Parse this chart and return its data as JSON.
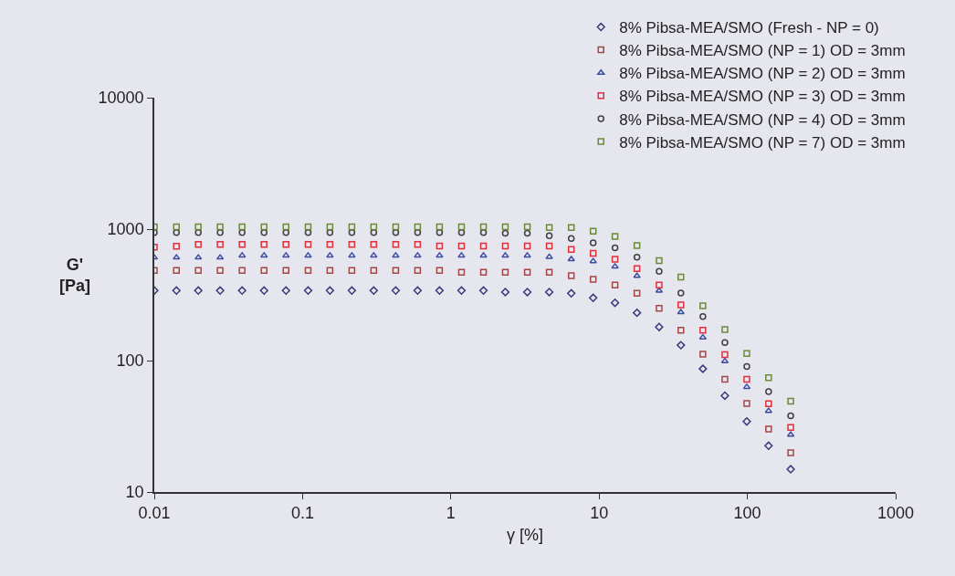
{
  "chart_data": {
    "type": "scatter",
    "xlabel": "γ [%]",
    "ylabel": "G'\n[Pa]",
    "log": "xy",
    "grid": false,
    "legend": "top right",
    "xlim": [
      0.01,
      1000
    ],
    "xticks": [
      0.01,
      0.1,
      1,
      10,
      100,
      1000
    ],
    "ylim": [
      10,
      10000
    ],
    "yticks": [
      10,
      100,
      1000,
      10000
    ],
    "x": [
      0.01,
      0.0141,
      0.0198,
      0.0278,
      0.0391,
      0.055,
      0.0773,
      0.109,
      0.153,
      0.215,
      0.302,
      0.425,
      0.597,
      0.839,
      1.18,
      1.66,
      2.33,
      3.28,
      4.61,
      6.49,
      9.12,
      12.8,
      18,
      25.4,
      35.6,
      50.1,
      70.5,
      99.1,
      139,
      196
    ],
    "series": [
      {
        "name": "8% Pibsa-MEA/SMO (Fresh - NP = 0)",
        "color": "#3a3a7a",
        "marker": "diamond",
        "values": [
          341,
          341,
          341,
          341,
          341,
          341,
          341,
          341,
          341,
          341,
          341,
          341,
          341,
          341,
          341,
          341,
          332,
          332,
          332,
          325,
          300,
          275,
          231,
          180,
          131,
          86.6,
          54.1,
          34.4,
          22.5,
          14.9
        ]
      },
      {
        "name": "8% Pibsa-MEA/SMO (NP = 1) OD = 3mm",
        "color": "#a04848",
        "marker": "square",
        "values": [
          485,
          485,
          485,
          485,
          485,
          485,
          485,
          485,
          485,
          485,
          485,
          485,
          485,
          485,
          470,
          470,
          470,
          470,
          470,
          443,
          415,
          375,
          325,
          250,
          170,
          112,
          72,
          47.2,
          30.1,
          19.9
        ]
      },
      {
        "name": "8% Pibsa-MEA/SMO (NP = 2) OD = 3mm",
        "color": "#3c4c9c",
        "marker": "triangle",
        "values": [
          608,
          608,
          608,
          608,
          630,
          630,
          630,
          630,
          630,
          630,
          630,
          630,
          630,
          630,
          630,
          630,
          630,
          630,
          615,
          590,
          570,
          520,
          440,
          340,
          233,
          150,
          99,
          63,
          41.4,
          27.3
        ]
      },
      {
        "name": "8% Pibsa-MEA/SMO (NP = 3) OD = 3mm",
        "color": "#e0303c",
        "marker": "square",
        "values": [
          729,
          740,
          765,
          765,
          765,
          765,
          765,
          765,
          765,
          765,
          765,
          765,
          765,
          745,
          745,
          745,
          745,
          745,
          745,
          700,
          655,
          590,
          500,
          375,
          265,
          170,
          111,
          72,
          47,
          31
        ]
      },
      {
        "name": "8% Pibsa-MEA/SMO (NP = 4) OD = 3mm",
        "color": "#404040",
        "marker": "circle",
        "values": [
          940,
          940,
          940,
          940,
          940,
          940,
          940,
          940,
          940,
          940,
          940,
          940,
          940,
          940,
          940,
          940,
          930,
          930,
          890,
          850,
          787,
          720,
          612,
          477,
          326,
          216,
          137,
          90,
          58,
          38
        ]
      },
      {
        "name": "8% Pibsa-MEA/SMO (NP = 7) OD = 3mm",
        "color": "#6a8a3a",
        "marker": "square",
        "values": [
          1040,
          1040,
          1040,
          1040,
          1040,
          1040,
          1040,
          1040,
          1040,
          1040,
          1040,
          1040,
          1040,
          1040,
          1040,
          1040,
          1040,
          1040,
          1030,
          1030,
          964,
          881,
          750,
          577,
          432,
          261,
          172,
          113,
          74,
          49
        ]
      }
    ]
  }
}
